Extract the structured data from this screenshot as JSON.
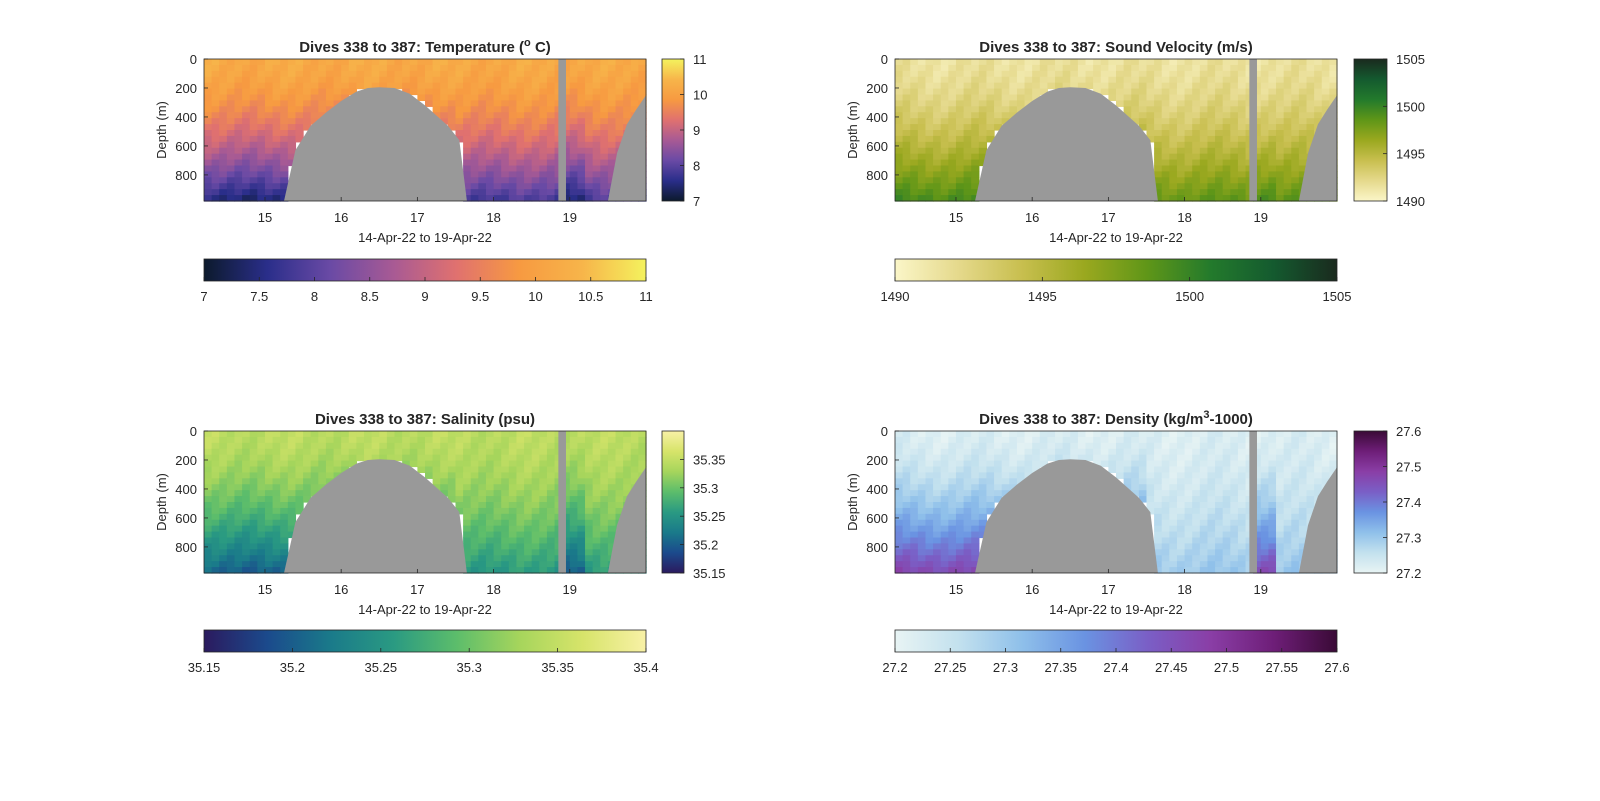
{
  "figure": {
    "background": "#ffffff",
    "land_color": "#999999"
  },
  "chart_data": [
    {
      "type": "heatmap",
      "title_main": "Dives 338 to 387: Temperature (",
      "title_sup": "o",
      "title_end": " C)",
      "xlabel": "14-Apr-22 to 19-Apr-22",
      "ylabel": "Depth (m)",
      "xlim": [
        14.2,
        20.0
      ],
      "ylim": [
        980,
        0
      ],
      "x_ticks": [
        15,
        16,
        17,
        18,
        19
      ],
      "x_tick_labels": [
        "15",
        "16",
        "17",
        "18",
        "19"
      ],
      "y_ticks": [
        0,
        200,
        400,
        600,
        800
      ],
      "y_tick_labels": [
        "0",
        "200",
        "400",
        "600",
        "800"
      ],
      "colormap": [
        "#0c1a2c",
        "#2a2e8a",
        "#6a4aa5",
        "#a85a94",
        "#e0716f",
        "#f79a41",
        "#f7b54a",
        "#f4f25e"
      ],
      "side_colorbar": {
        "range": [
          7,
          11
        ],
        "ticks": [
          7,
          8,
          9,
          10,
          11
        ],
        "tick_labels": [
          "7",
          "8",
          "9",
          "10",
          "11"
        ]
      },
      "bottom_colorbar": {
        "range": [
          7,
          11
        ],
        "ticks": [
          7,
          7.5,
          8,
          8.5,
          9,
          9.5,
          10,
          10.5,
          11
        ],
        "tick_labels": [
          "7",
          "7.5",
          "8",
          "8.5",
          "9",
          "9.5",
          "10",
          "10.5",
          "11"
        ]
      },
      "surface_value": 10.2,
      "deep_value": 7.4,
      "seafloor_deep_value": 7.8
    },
    {
      "type": "heatmap",
      "title_main": "Dives 338 to 387: Sound Velocity (m/s)",
      "xlabel": "14-Apr-22 to 19-Apr-22",
      "ylabel": "Depth (m)",
      "xlim": [
        14.2,
        20.0
      ],
      "ylim": [
        980,
        0
      ],
      "x_ticks": [
        15,
        16,
        17,
        18,
        19
      ],
      "x_tick_labels": [
        "15",
        "16",
        "17",
        "18",
        "19"
      ],
      "y_ticks": [
        0,
        200,
        400,
        600,
        800
      ],
      "y_tick_labels": [
        "0",
        "200",
        "400",
        "600",
        "800"
      ],
      "colormap": [
        "#fbf6c8",
        "#e5d98c",
        "#c8bf4f",
        "#9aa81f",
        "#5f9618",
        "#237a2c",
        "#145a2f",
        "#1a2a1e"
      ],
      "side_colorbar": {
        "range": [
          1490,
          1505
        ],
        "ticks": [
          1490,
          1495,
          1500,
          1505
        ],
        "tick_labels": [
          "1490",
          "1495",
          "1500",
          "1505"
        ]
      },
      "bottom_colorbar": {
        "range": [
          1490,
          1505
        ],
        "ticks": [
          1490,
          1495,
          1500,
          1505
        ],
        "tick_labels": [
          "1490",
          "1495",
          "1500",
          "1505"
        ]
      },
      "surface_value": 1491.5,
      "deep_value": 1499.5,
      "seafloor_deep_value": 1498.5
    },
    {
      "type": "heatmap",
      "title_main": "Dives 338 to 387: Salinity (psu)",
      "xlabel": "14-Apr-22 to 19-Apr-22",
      "ylabel": "Depth (m)",
      "xlim": [
        14.2,
        20.0
      ],
      "ylim": [
        980,
        0
      ],
      "x_ticks": [
        15,
        16,
        17,
        18,
        19
      ],
      "x_tick_labels": [
        "15",
        "16",
        "17",
        "18",
        "19"
      ],
      "y_ticks": [
        0,
        200,
        400,
        600,
        800
      ],
      "y_tick_labels": [
        "0",
        "200",
        "400",
        "600",
        "800"
      ],
      "colormap": [
        "#2b1a5e",
        "#1b4a8c",
        "#1a7a8a",
        "#2a9a82",
        "#5cbd6b",
        "#a6d55c",
        "#d7e46a",
        "#f8f1a6"
      ],
      "side_colorbar": {
        "range": [
          35.15,
          35.4
        ],
        "ticks": [
          35.15,
          35.2,
          35.25,
          35.3,
          35.35
        ],
        "tick_labels": [
          "35.15",
          "35.2",
          "35.25",
          "35.3",
          "35.35"
        ]
      },
      "bottom_colorbar": {
        "range": [
          35.15,
          35.4
        ],
        "ticks": [
          35.15,
          35.2,
          35.25,
          35.3,
          35.35,
          35.4
        ],
        "tick_labels": [
          "35.15",
          "35.2",
          "35.25",
          "35.3",
          "35.35",
          "35.4"
        ]
      },
      "surface_value": 35.345,
      "deep_value": 35.2,
      "seafloor_deep_value": 35.255
    },
    {
      "type": "heatmap",
      "title_main": "Dives 338 to 387: Density (kg/m",
      "title_sup": "3",
      "title_end": "-1000)",
      "xlabel": "14-Apr-22 to 19-Apr-22",
      "ylabel": "Depth (m)",
      "xlim": [
        14.2,
        20.0
      ],
      "ylim": [
        980,
        0
      ],
      "x_ticks": [
        15,
        16,
        17,
        18,
        19
      ],
      "x_tick_labels": [
        "15",
        "16",
        "17",
        "18",
        "19"
      ],
      "y_ticks": [
        0,
        200,
        400,
        600,
        800
      ],
      "y_tick_labels": [
        "0",
        "200",
        "400",
        "600",
        "800"
      ],
      "colormap": [
        "#e8f4f4",
        "#c3e1ee",
        "#8fc0ea",
        "#6a93e2",
        "#7a5fc6",
        "#8a3ea6",
        "#6e1e78",
        "#3a0a36"
      ],
      "side_colorbar": {
        "range": [
          27.2,
          27.6
        ],
        "ticks": [
          27.2,
          27.3,
          27.4,
          27.5,
          27.6
        ],
        "tick_labels": [
          "27.2",
          "27.3",
          "27.4",
          "27.5",
          "27.6"
        ]
      },
      "bottom_colorbar": {
        "range": [
          27.2,
          27.6
        ],
        "ticks": [
          27.2,
          27.25,
          27.3,
          27.35,
          27.4,
          27.45,
          27.5,
          27.55,
          27.6
        ],
        "tick_labels": [
          "27.2",
          "27.25",
          "27.3",
          "27.35",
          "27.4",
          "27.45",
          "27.5",
          "27.55",
          "27.6"
        ]
      },
      "surface_value": 27.22,
      "deep_value": 27.47,
      "seafloor_deep_value": 27.3
    }
  ],
  "seafloor": {
    "description_x_in_days": [
      15.25,
      15.4,
      15.6,
      15.8,
      16.0,
      16.2,
      16.35,
      16.5,
      16.7,
      16.9,
      17.1,
      17.25,
      17.4,
      17.55,
      17.65
    ],
    "depth_m": [
      980,
      630,
      460,
      370,
      290,
      225,
      200,
      195,
      200,
      240,
      320,
      390,
      460,
      560,
      980
    ]
  },
  "data_gaps": [
    {
      "x_start": 18.85,
      "x_end": 18.95
    },
    {
      "x_start": 19.5,
      "x_end": 20.0,
      "depth_shallow": 250
    }
  ]
}
